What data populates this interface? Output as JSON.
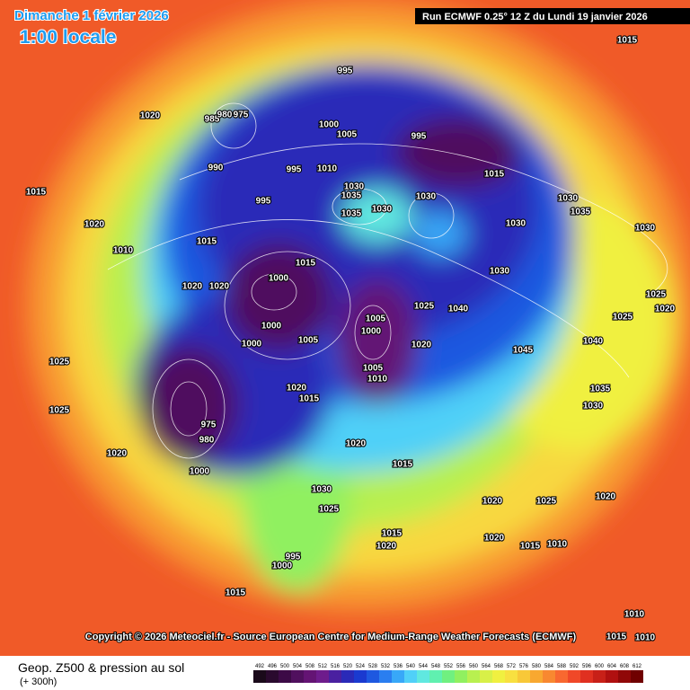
{
  "header": {
    "date": "Dimanche 1 février 2026",
    "time": "1:00 locale",
    "run": "Run ECMWF 0.25° 12 Z du Lundi 19 janvier 2026"
  },
  "copyright": "Copyright © 2026 Meteociel.fr - Source European Centre for Medium-Range Weather Forecasts (ECMWF)",
  "footer": {
    "title": "Geop. Z500 & pression au sol",
    "lead": "(+ 300h)"
  },
  "legend": {
    "values": [
      492,
      496,
      500,
      504,
      508,
      512,
      516,
      520,
      524,
      528,
      532,
      536,
      540,
      544,
      548,
      552,
      556,
      560,
      564,
      568,
      572,
      576,
      580,
      584,
      588,
      592,
      596,
      600,
      604,
      608,
      612
    ],
    "colors": [
      "#1a0a1a",
      "#2a0a2e",
      "#3c0a46",
      "#50105e",
      "#641474",
      "#6e1c8c",
      "#4a20a0",
      "#2a2ab8",
      "#1a3ad0",
      "#1e58e0",
      "#2a7ef0",
      "#38a8f8",
      "#50d0f8",
      "#60e8e0",
      "#60f0b0",
      "#70f080",
      "#90f060",
      "#b8f050",
      "#d8f048",
      "#f0f040",
      "#f8e040",
      "#f8c838",
      "#f8a830",
      "#f88830",
      "#f86830",
      "#f04828",
      "#e03020",
      "#c82018",
      "#b01010",
      "#900808",
      "#700000"
    ]
  },
  "isobars": [
    1000,
    1000,
    1005,
    1000,
    1015,
    975,
    980,
    1000,
    985,
    980,
    975,
    990,
    995,
    1000,
    1005,
    995,
    1010,
    1030,
    1035,
    1035,
    1030,
    1030,
    1015,
    1030,
    1035,
    1030,
    1030,
    1040,
    1025,
    1020,
    1045,
    1015,
    1020,
    1015,
    1020,
    1010,
    1015,
    1020,
    1020,
    1000,
    1005,
    1020,
    1015,
    1025,
    1025,
    1020,
    1020,
    1015,
    1030,
    1025,
    995,
    1000,
    1015,
    1020,
    1025,
    1020,
    1015,
    1010,
    1020,
    1015,
    1020,
    1010,
    1015,
    1010,
    1030,
    1025,
    1020,
    995,
    995,
    1005,
    1010,
    1040,
    1035,
    1030,
    1025
  ]
}
